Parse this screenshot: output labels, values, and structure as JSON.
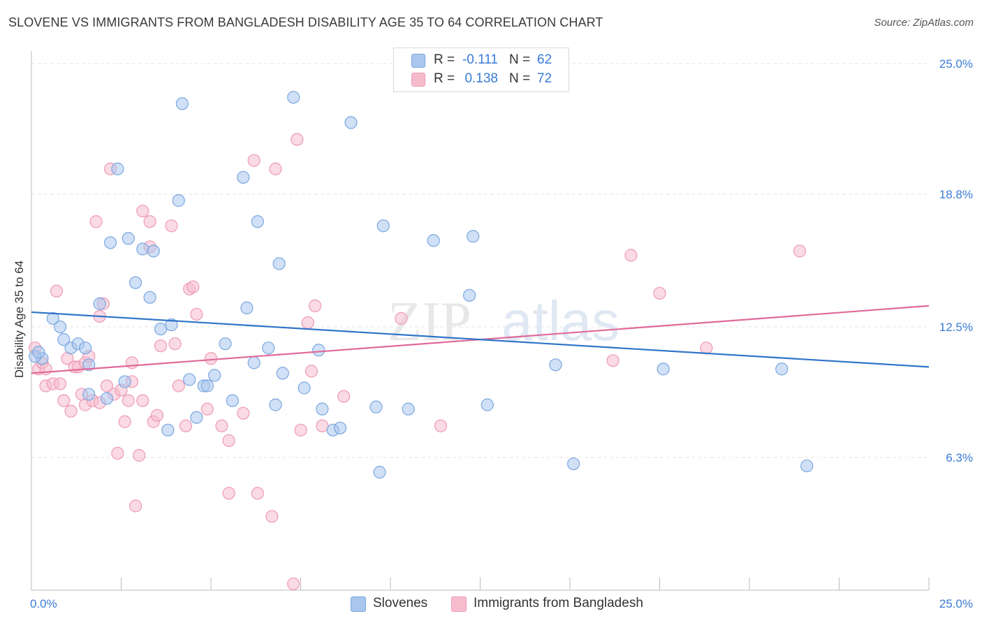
{
  "title": "SLOVENE VS IMMIGRANTS FROM BANGLADESH DISABILITY AGE 35 TO 64 CORRELATION CHART",
  "source": "Source: ZipAtlas.com",
  "watermark": {
    "zip": "ZIP",
    "atlas": "atlas"
  },
  "legend_top": {
    "rows": [
      {
        "r_label": "R =",
        "r_value": "-0.111",
        "n_label": "N =",
        "n_value": "62"
      },
      {
        "r_label": "R =",
        "r_value": "0.138",
        "n_label": "N =",
        "n_value": "72"
      }
    ]
  },
  "legend_bottom": {
    "series1": "Slovenes",
    "series2": "Immigrants from Bangladesh"
  },
  "colors": {
    "blue_fill": "#a9c6ee",
    "blue_stroke": "#7aa7df",
    "blue_line": "#2f74c9",
    "pink_fill": "#f6bccd",
    "pink_stroke": "#ee9ab4",
    "pink_line": "#e0699a",
    "axis_text": "#3a7bd5",
    "grid": "#e4e4e4"
  },
  "chart_data": {
    "type": "scatter",
    "title": "SLOVENE VS IMMIGRANTS FROM BANGLADESH DISABILITY AGE 35 TO 64 CORRELATION CHART",
    "xlabel": "",
    "ylabel": "Disability Age 35 to 64",
    "xlim": [
      0,
      25
    ],
    "ylim": [
      0,
      25.6
    ],
    "x_tick_labels": [
      "0.0%",
      "25.0%"
    ],
    "y_ticks": [
      6.3,
      12.5,
      18.8,
      25.0
    ],
    "y_tick_labels": [
      "6.3%",
      "12.5%",
      "18.8%",
      "25.0%"
    ],
    "grid": true,
    "legend_position": "top-center",
    "series": [
      {
        "name": "Slovenes",
        "r": -0.111,
        "n": 62,
        "trend": [
          [
            0,
            13.2
          ],
          [
            25,
            10.6
          ]
        ],
        "points": [
          [
            0.3,
            11.0
          ],
          [
            0.1,
            11.1
          ],
          [
            0.6,
            12.9
          ],
          [
            0.8,
            12.5
          ],
          [
            0.9,
            11.9
          ],
          [
            1.1,
            11.5
          ],
          [
            1.3,
            11.7
          ],
          [
            1.5,
            11.5
          ],
          [
            1.6,
            10.7
          ],
          [
            1.6,
            9.3
          ],
          [
            1.9,
            13.6
          ],
          [
            2.1,
            9.1
          ],
          [
            2.2,
            16.5
          ],
          [
            2.4,
            20.0
          ],
          [
            2.6,
            9.9
          ],
          [
            2.7,
            16.7
          ],
          [
            2.9,
            14.6
          ],
          [
            3.1,
            16.2
          ],
          [
            3.3,
            13.9
          ],
          [
            3.4,
            16.1
          ],
          [
            3.6,
            12.4
          ],
          [
            3.8,
            7.6
          ],
          [
            3.9,
            12.6
          ],
          [
            4.1,
            18.5
          ],
          [
            4.2,
            23.1
          ],
          [
            4.4,
            10.0
          ],
          [
            4.6,
            8.2
          ],
          [
            4.8,
            9.7
          ],
          [
            4.9,
            9.7
          ],
          [
            5.1,
            10.2
          ],
          [
            5.4,
            11.7
          ],
          [
            5.6,
            9.0
          ],
          [
            5.9,
            19.6
          ],
          [
            6.0,
            13.4
          ],
          [
            6.2,
            10.8
          ],
          [
            6.3,
            17.5
          ],
          [
            6.6,
            11.5
          ],
          [
            6.8,
            8.8
          ],
          [
            6.9,
            15.5
          ],
          [
            7.0,
            10.3
          ],
          [
            7.3,
            23.4
          ],
          [
            7.6,
            9.6
          ],
          [
            8.0,
            11.4
          ],
          [
            8.1,
            8.6
          ],
          [
            8.4,
            7.6
          ],
          [
            8.6,
            7.7
          ],
          [
            8.9,
            22.2
          ],
          [
            9.6,
            8.7
          ],
          [
            9.7,
            5.6
          ],
          [
            9.8,
            17.3
          ],
          [
            10.5,
            8.6
          ],
          [
            11.2,
            16.6
          ],
          [
            12.2,
            14.0
          ],
          [
            12.3,
            16.8
          ],
          [
            12.7,
            8.8
          ],
          [
            13.8,
            25.3
          ],
          [
            14.6,
            10.7
          ],
          [
            15.1,
            6.0
          ],
          [
            17.6,
            10.5
          ],
          [
            20.9,
            10.5
          ],
          [
            21.6,
            5.9
          ],
          [
            0.2,
            11.3
          ]
        ]
      },
      {
        "name": "Immigrants from Bangladesh",
        "r": 0.138,
        "n": 72,
        "trend": [
          [
            0,
            10.3
          ],
          [
            25,
            13.5
          ]
        ],
        "points": [
          [
            0.1,
            11.5
          ],
          [
            0.2,
            10.5
          ],
          [
            0.3,
            10.8
          ],
          [
            0.4,
            10.5
          ],
          [
            0.4,
            9.7
          ],
          [
            0.6,
            9.8
          ],
          [
            0.7,
            14.2
          ],
          [
            0.8,
            9.8
          ],
          [
            0.9,
            9.0
          ],
          [
            1.0,
            11.0
          ],
          [
            1.1,
            8.5
          ],
          [
            1.2,
            10.6
          ],
          [
            1.3,
            10.6
          ],
          [
            1.4,
            9.3
          ],
          [
            1.5,
            8.8
          ],
          [
            1.5,
            10.8
          ],
          [
            1.6,
            11.1
          ],
          [
            1.7,
            9.0
          ],
          [
            1.8,
            17.5
          ],
          [
            1.9,
            8.9
          ],
          [
            1.9,
            13.0
          ],
          [
            2.0,
            13.6
          ],
          [
            2.1,
            9.7
          ],
          [
            2.2,
            20.0
          ],
          [
            2.3,
            9.3
          ],
          [
            2.4,
            6.5
          ],
          [
            2.5,
            9.5
          ],
          [
            2.6,
            8.0
          ],
          [
            2.7,
            9.0
          ],
          [
            2.8,
            10.8
          ],
          [
            2.8,
            9.9
          ],
          [
            2.9,
            4.0
          ],
          [
            3.0,
            6.4
          ],
          [
            3.1,
            9.0
          ],
          [
            3.1,
            18.0
          ],
          [
            3.3,
            16.3
          ],
          [
            3.3,
            17.5
          ],
          [
            3.4,
            8.0
          ],
          [
            3.5,
            8.3
          ],
          [
            3.6,
            11.6
          ],
          [
            3.9,
            17.3
          ],
          [
            4.0,
            11.7
          ],
          [
            4.1,
            9.7
          ],
          [
            4.3,
            7.8
          ],
          [
            4.4,
            14.3
          ],
          [
            4.5,
            14.4
          ],
          [
            4.6,
            13.1
          ],
          [
            4.9,
            8.6
          ],
          [
            5.0,
            11.0
          ],
          [
            5.3,
            7.8
          ],
          [
            5.5,
            4.6
          ],
          [
            5.5,
            7.1
          ],
          [
            5.9,
            8.4
          ],
          [
            6.2,
            20.4
          ],
          [
            6.3,
            4.6
          ],
          [
            6.7,
            3.5
          ],
          [
            6.8,
            20.0
          ],
          [
            7.3,
            0.3
          ],
          [
            7.4,
            21.4
          ],
          [
            7.5,
            7.6
          ],
          [
            7.7,
            12.7
          ],
          [
            7.8,
            10.4
          ],
          [
            7.9,
            13.5
          ],
          [
            8.1,
            7.8
          ],
          [
            8.7,
            9.2
          ],
          [
            10.3,
            12.9
          ],
          [
            11.4,
            7.8
          ],
          [
            16.2,
            10.9
          ],
          [
            16.7,
            15.9
          ],
          [
            17.5,
            14.1
          ],
          [
            18.8,
            11.5
          ],
          [
            21.4,
            16.1
          ]
        ]
      }
    ]
  }
}
